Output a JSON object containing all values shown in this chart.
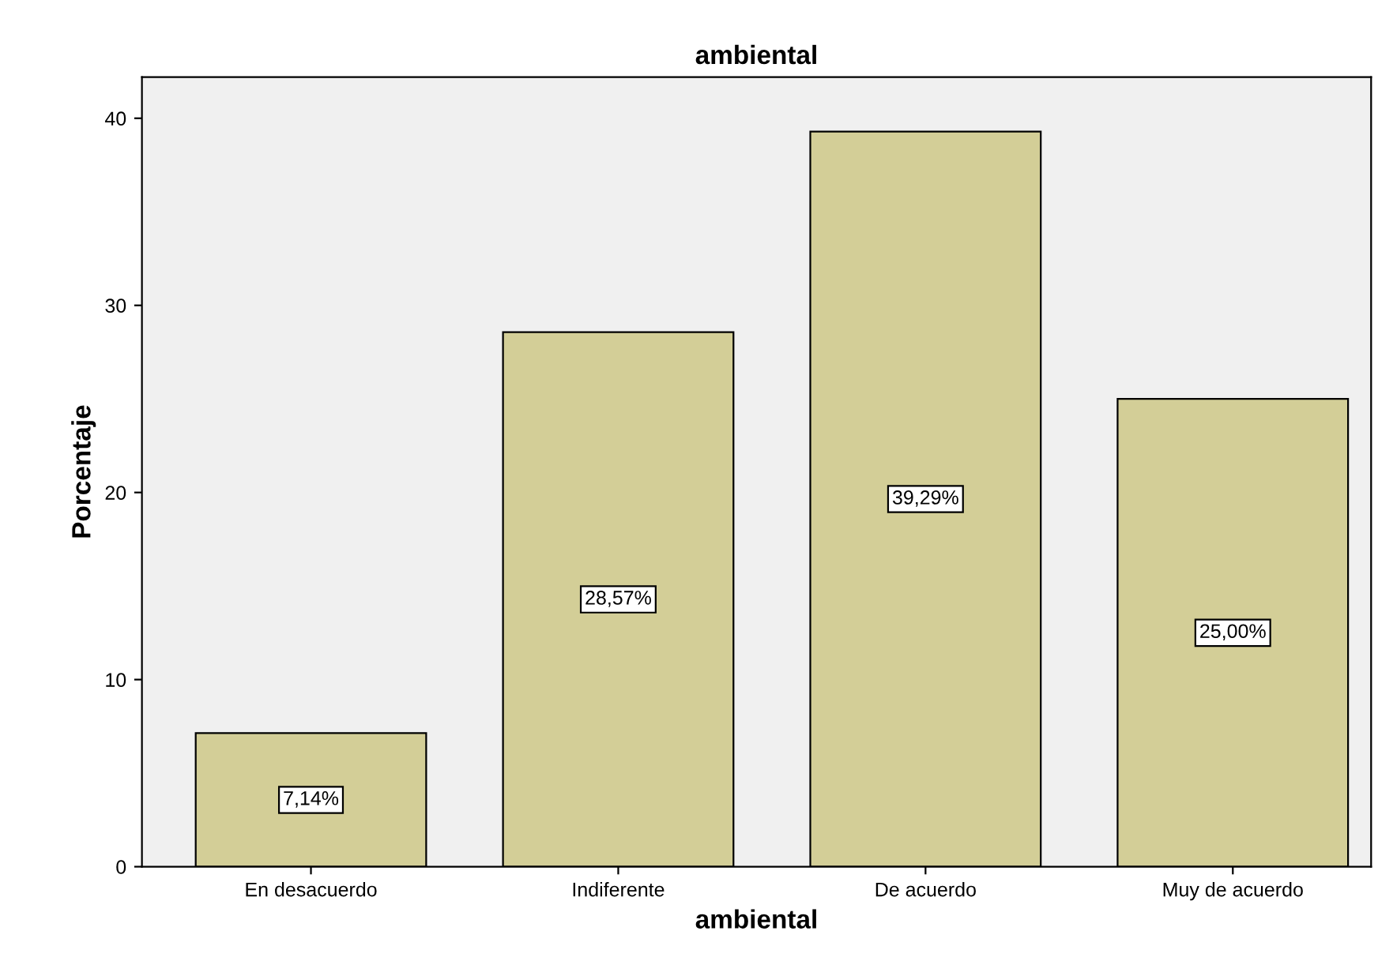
{
  "chart_data": {
    "type": "bar",
    "title": "ambiental",
    "xlabel": "ambiental",
    "ylabel": "Porcentaje",
    "categories": [
      "En desacuerdo",
      "Indiferente",
      "De acuerdo",
      "Muy de acuerdo"
    ],
    "values": [
      7.14,
      28.57,
      39.29,
      25.0
    ],
    "value_labels": [
      "7,14%",
      "28,57%",
      "39,29%",
      "25,00%"
    ],
    "color": "#d3ce97",
    "ylim": [
      0,
      42.2
    ],
    "yticks": [
      0,
      10,
      20,
      30,
      40
    ],
    "grid": false,
    "legend": false
  }
}
